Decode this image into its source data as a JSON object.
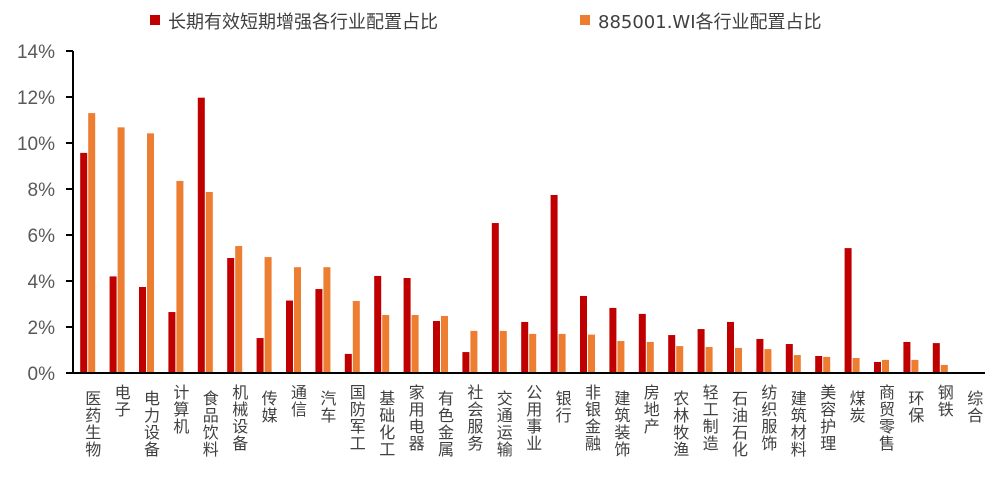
{
  "chart_data": {
    "type": "bar",
    "title": "",
    "xlabel": "",
    "ylabel": "",
    "ylim": [
      0,
      14
    ],
    "yticks": [
      "0%",
      "2%",
      "4%",
      "6%",
      "8%",
      "10%",
      "12%",
      "14%"
    ],
    "grid": false,
    "legend_position": "top",
    "categories": [
      "医药生物",
      "电子",
      "电力设备",
      "计算机",
      "食品饮料",
      "机械设备",
      "传媒",
      "通信",
      "汽车",
      "国防军工",
      "基础化工",
      "家用电器",
      "有色金属",
      "社会服务",
      "交通运输",
      "公用事业",
      "银行",
      "非银金融",
      "建筑装饰",
      "房地产",
      "农林牧渔",
      "轻工制造",
      "石油石化",
      "纺织服饰",
      "建筑材料",
      "美容护理",
      "煤炭",
      "商贸零售",
      "环保",
      "钢铁",
      "综合"
    ],
    "series": [
      {
        "name": "长期有效短期增强各行业配置占比",
        "color": "#C00000",
        "values": [
          9.57,
          4.2,
          3.74,
          2.65,
          11.97,
          5.0,
          1.52,
          3.15,
          3.65,
          0.83,
          4.22,
          4.13,
          2.26,
          0.91,
          6.52,
          2.22,
          7.74,
          3.35,
          2.83,
          2.57,
          1.65,
          1.91,
          2.22,
          1.48,
          1.26,
          0.74,
          5.43,
          0.48,
          1.35,
          1.3,
          0
        ]
      },
      {
        "name": "885001.WI各行业配置占比",
        "color": "#ED7D31",
        "values": [
          11.3,
          10.68,
          10.42,
          8.35,
          7.87,
          5.52,
          5.04,
          4.6,
          4.6,
          3.13,
          2.52,
          2.52,
          2.48,
          1.83,
          1.83,
          1.7,
          1.7,
          1.67,
          1.39,
          1.35,
          1.17,
          1.13,
          1.09,
          1.04,
          0.78,
          0.7,
          0.65,
          0.57,
          0.57,
          0.35,
          0
        ]
      }
    ]
  }
}
